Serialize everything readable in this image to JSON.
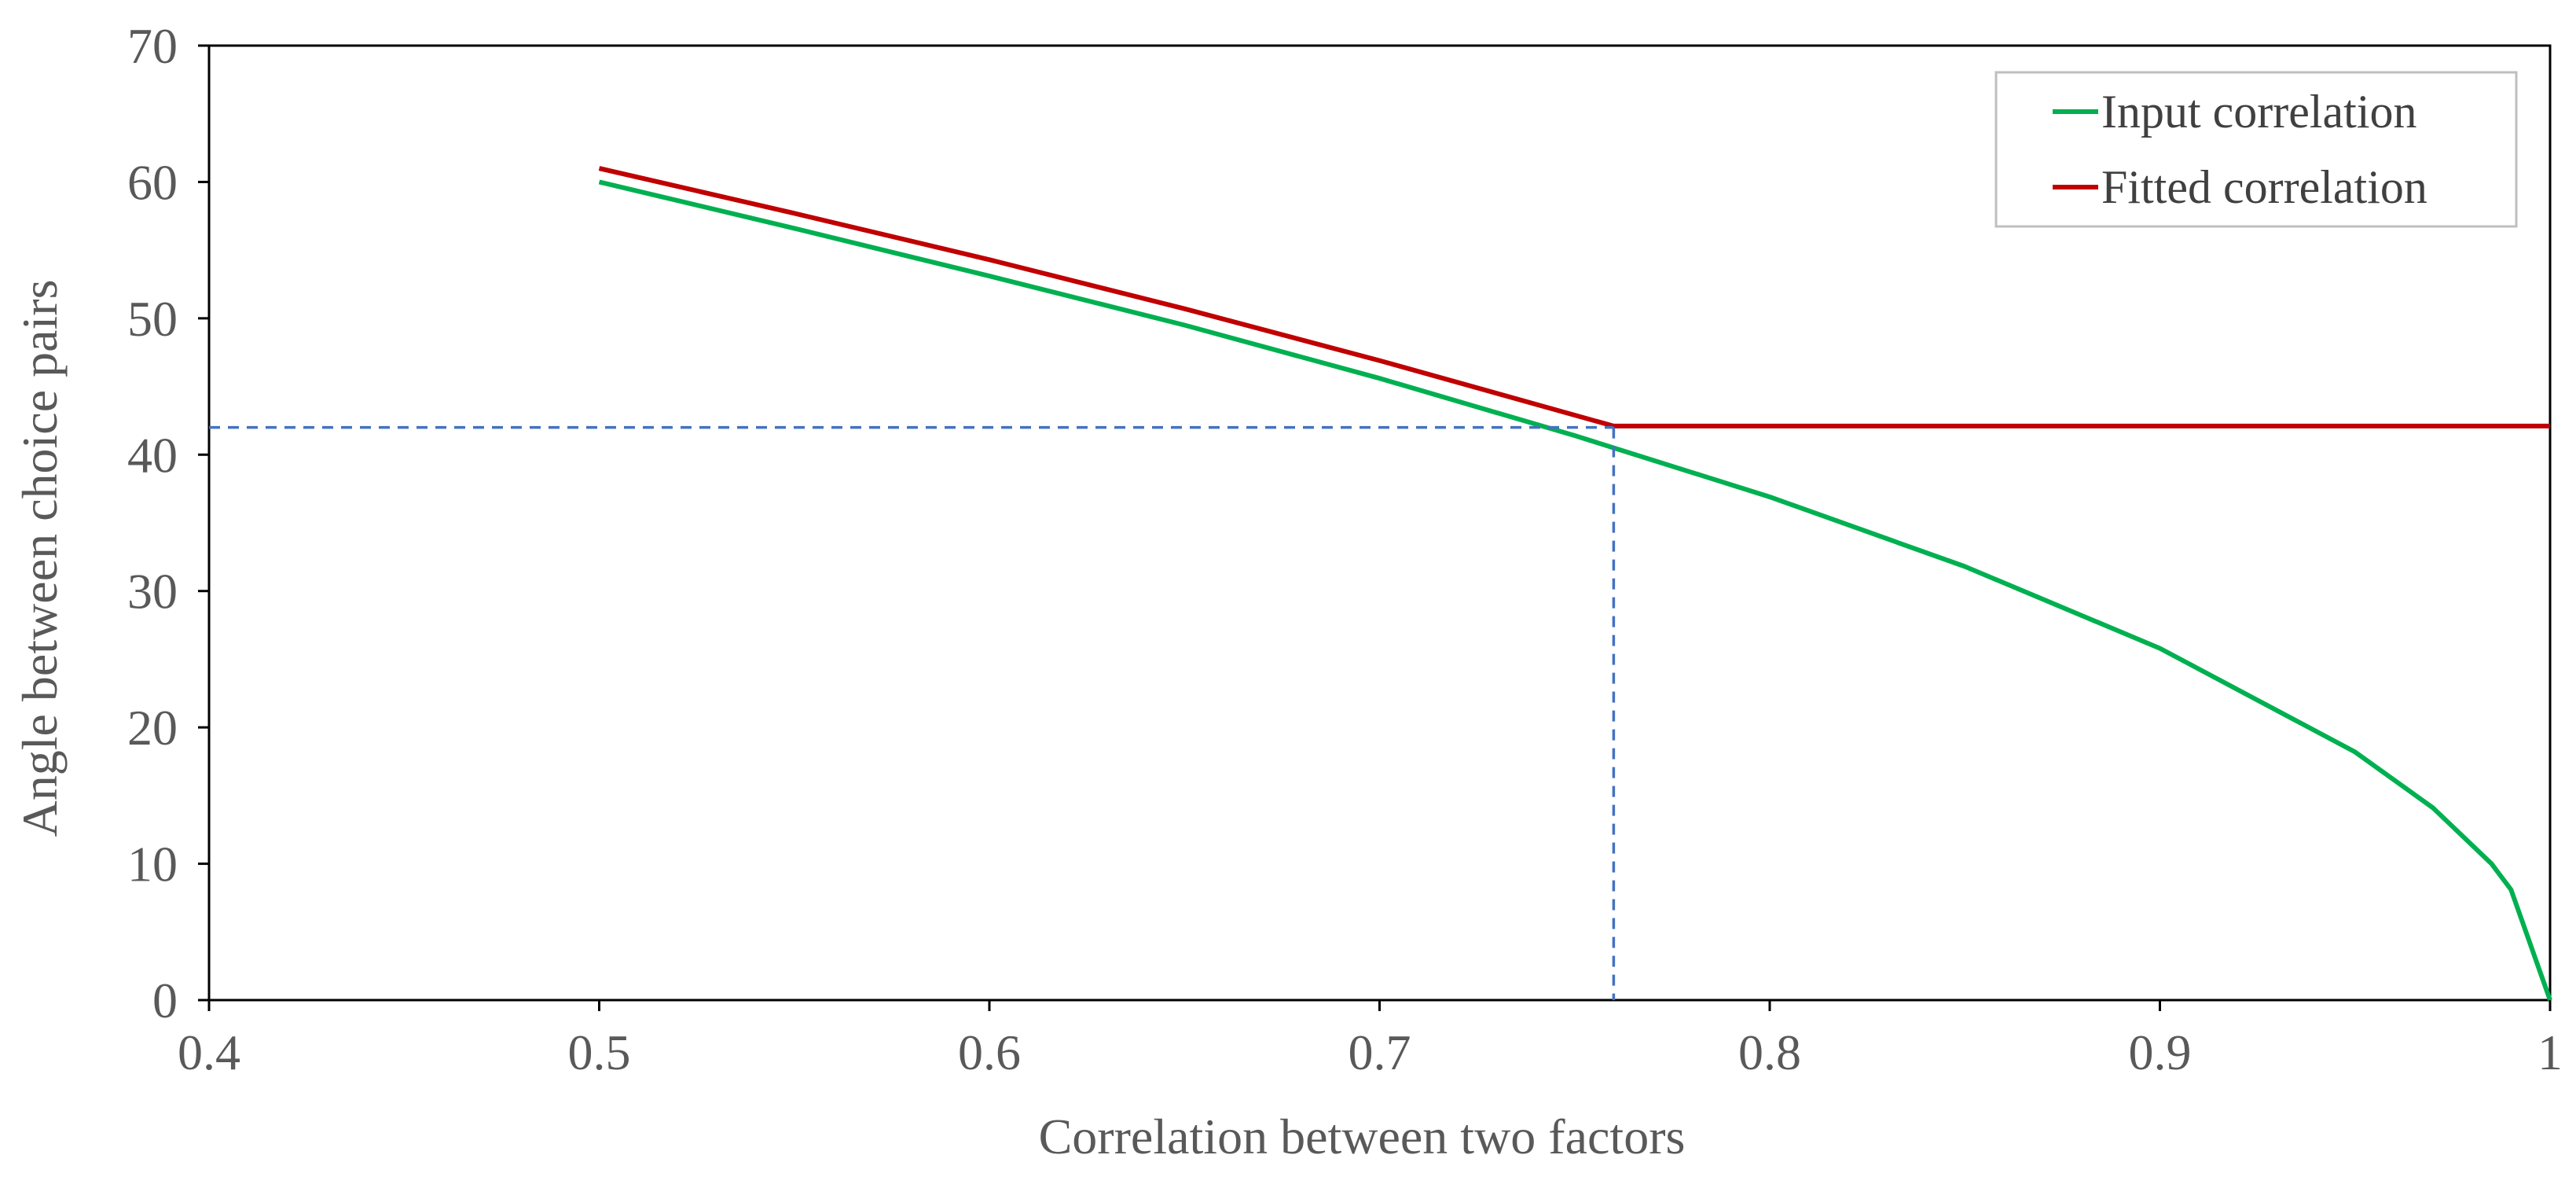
{
  "chart_data": {
    "type": "line",
    "title": "",
    "xlabel": "Correlation between two factors",
    "ylabel": "Angle between choice pairs",
    "xlim": [
      0.4,
      1
    ],
    "ylim": [
      0,
      70
    ],
    "x_ticks": [
      0.4,
      0.5,
      0.6,
      0.7,
      0.8,
      0.9,
      1
    ],
    "x_tick_labels": [
      "0.4",
      "0.5",
      "0.6",
      "0.7",
      "0.8",
      "0.9",
      "1"
    ],
    "y_ticks": [
      0,
      10,
      20,
      30,
      40,
      50,
      60,
      70
    ],
    "y_tick_labels": [
      "0",
      "10",
      "20",
      "30",
      "40",
      "50",
      "60",
      "70"
    ],
    "grid": false,
    "legend_position": "top-right",
    "series": [
      {
        "name": "Input correlation",
        "color": "#00B050",
        "style": "solid",
        "points": [
          [
            0.5,
            60.0
          ],
          [
            0.55,
            56.6
          ],
          [
            0.6,
            53.1
          ],
          [
            0.65,
            49.5
          ],
          [
            0.7,
            45.6
          ],
          [
            0.75,
            41.4
          ],
          [
            0.76,
            40.5
          ],
          [
            0.8,
            36.9
          ],
          [
            0.85,
            31.8
          ],
          [
            0.9,
            25.8
          ],
          [
            0.95,
            18.2
          ],
          [
            0.97,
            14.1
          ],
          [
            0.985,
            10.0
          ],
          [
            0.99,
            8.1
          ],
          [
            1.0,
            0.0
          ]
        ]
      },
      {
        "name": "Fitted correlation",
        "color": "#C00000",
        "style": "solid",
        "points": [
          [
            0.5,
            61.0
          ],
          [
            0.55,
            57.7
          ],
          [
            0.6,
            54.3
          ],
          [
            0.65,
            50.7
          ],
          [
            0.7,
            46.9
          ],
          [
            0.74,
            43.7
          ],
          [
            0.76,
            42.1
          ],
          [
            0.8,
            42.1
          ],
          [
            0.9,
            42.1
          ],
          [
            1.0,
            42.1
          ]
        ]
      },
      {
        "name": "reference-horizontal",
        "color": "#4472C4",
        "style": "dashed",
        "show_in_legend": false,
        "points": [
          [
            0.4,
            42.0
          ],
          [
            0.76,
            42.0
          ]
        ]
      },
      {
        "name": "reference-vertical",
        "color": "#4472C4",
        "style": "dashed",
        "show_in_legend": false,
        "points": [
          [
            0.76,
            42.0
          ],
          [
            0.76,
            0.0
          ]
        ]
      }
    ],
    "legend": [
      {
        "label": "Input correlation",
        "color": "#00B050"
      },
      {
        "label": "Fitted correlation",
        "color": "#C00000"
      }
    ]
  }
}
